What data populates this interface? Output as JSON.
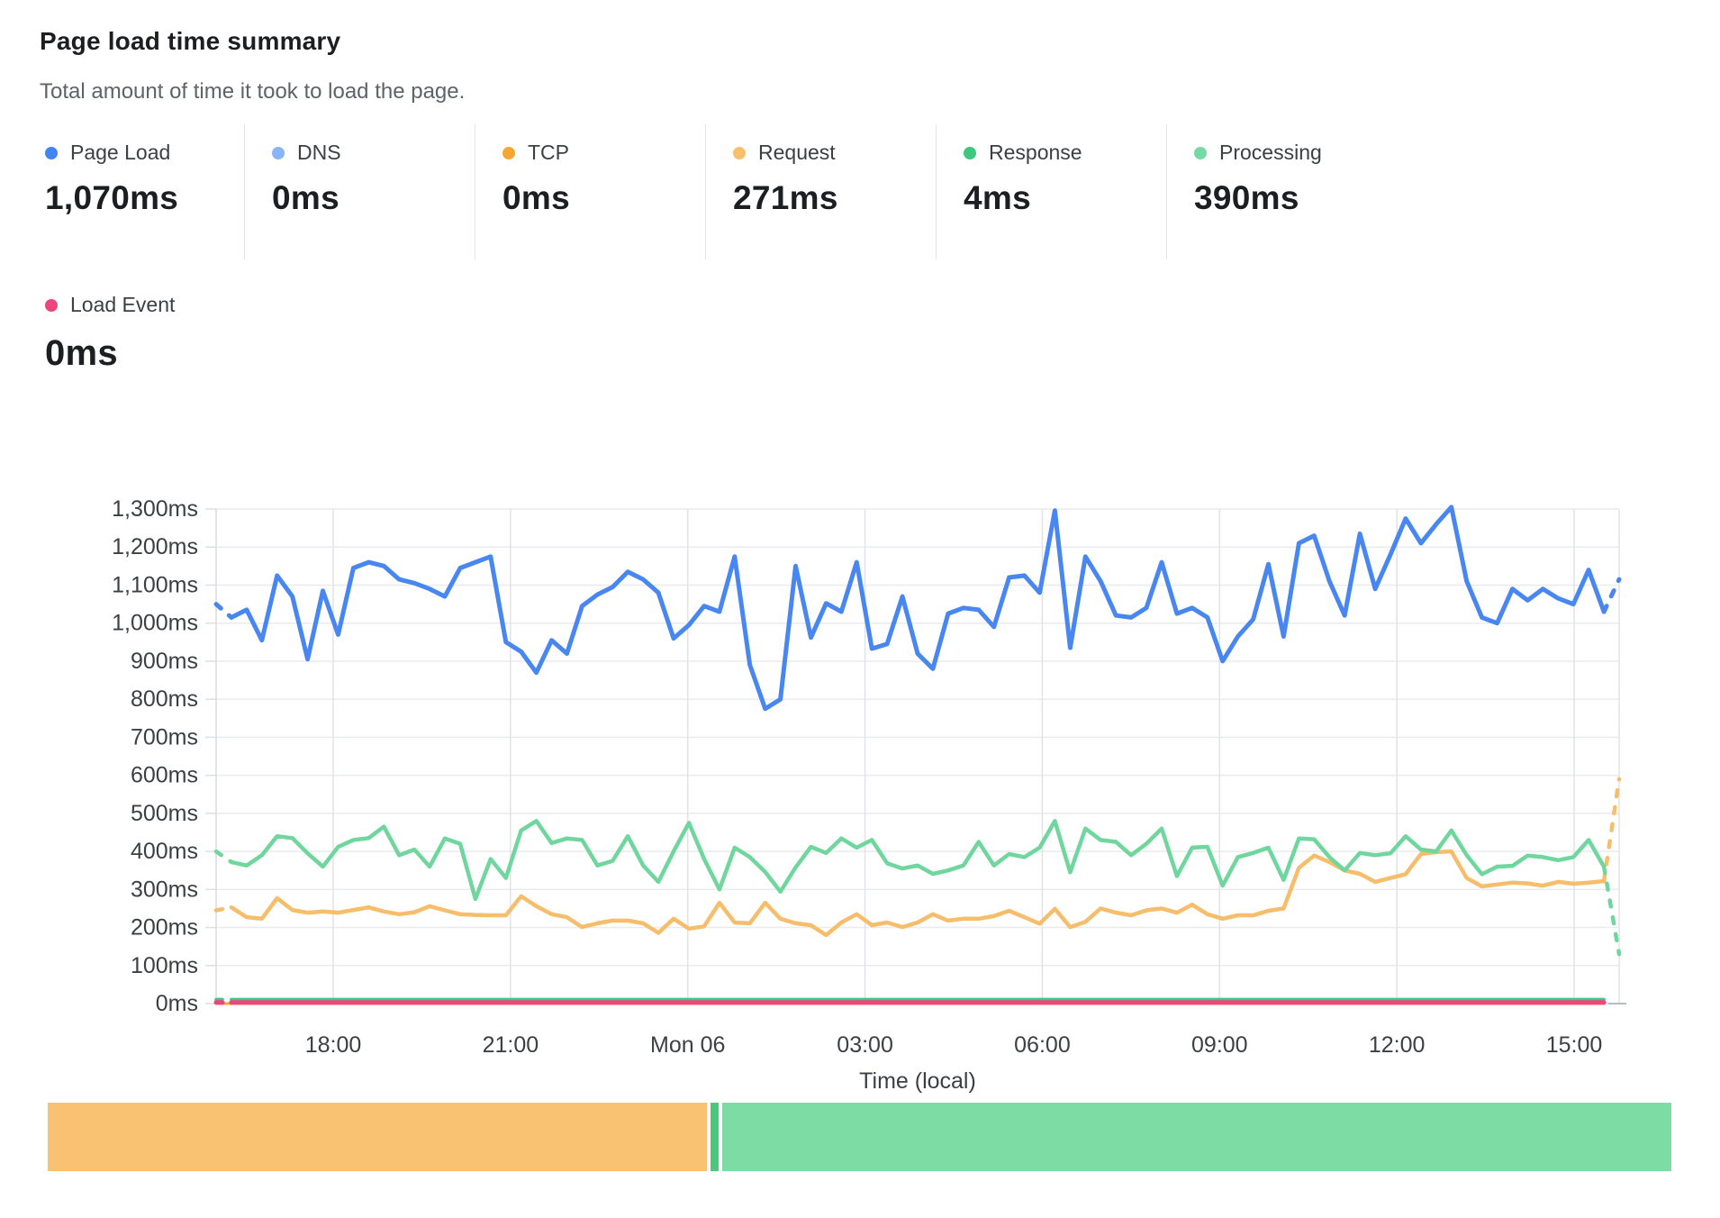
{
  "header": {
    "title": "Page load time summary",
    "subtitle": "Total amount of time it took to load the page."
  },
  "stats": [
    {
      "label": "Page Load",
      "value": "1,070ms",
      "color": "#4184f3"
    },
    {
      "label": "DNS",
      "value": "0ms",
      "color": "#8ab4f8"
    },
    {
      "label": "TCP",
      "value": "0ms",
      "color": "#f5a733"
    },
    {
      "label": "Request",
      "value": "271ms",
      "color": "#f8c06c"
    },
    {
      "label": "Response",
      "value": "4ms",
      "color": "#3fc77e"
    },
    {
      "label": "Processing",
      "value": "390ms",
      "color": "#74d9a2"
    }
  ],
  "load_event_stat": {
    "label": "Load Event",
    "value": "0ms",
    "color": "#ef457f"
  },
  "chart_data": {
    "type": "line",
    "title": "Page load time summary",
    "xlabel": "Time (local)",
    "ylabel": "",
    "ylim": [
      0,
      1300
    ],
    "grid": true,
    "x_ticks": [
      "18:00",
      "21:00",
      "Mon 06",
      "03:00",
      "06:00",
      "09:00",
      "12:00",
      "15:00"
    ],
    "y_ticks": [
      "0ms",
      "100ms",
      "200ms",
      "300ms",
      "400ms",
      "500ms",
      "600ms",
      "700ms",
      "800ms",
      "900ms",
      "1,000ms",
      "1,100ms",
      "1,200ms",
      "1,300ms"
    ],
    "note": "first and last segments of each visible series are dashed (partial data points)",
    "series": [
      {
        "name": "DNS",
        "color": "#8ab4f8",
        "width": 3,
        "flat": 0,
        "count": 92,
        "dash_start": false,
        "dash_end": false
      },
      {
        "name": "TCP",
        "color": "#f5a733",
        "width": 3,
        "flat": 0,
        "count": 92,
        "dash_start": false,
        "dash_end": false
      },
      {
        "name": "Response",
        "color": "#3fc77e",
        "width": 3.5,
        "flat": 11,
        "count": 92,
        "dash_start": true,
        "dash_end": false
      },
      {
        "name": "Load Event",
        "color": "#ef457f",
        "width": 5,
        "flat": 3,
        "count": 92,
        "dash_start": true,
        "dash_end": false
      },
      {
        "name": "Request",
        "color": "#f6bd6b",
        "width": 4.5,
        "dash_start": true,
        "dash_end": true,
        "values": [
          245,
          253,
          227,
          223,
          277,
          246,
          239,
          242,
          239,
          246,
          253,
          242,
          235,
          240,
          256,
          245,
          235,
          233,
          232,
          232,
          282,
          256,
          235,
          227,
          201,
          211,
          218,
          218,
          211,
          186,
          223,
          197,
          203,
          265,
          213,
          211,
          265,
          223,
          211,
          206,
          180,
          213,
          235,
          206,
          213,
          201,
          213,
          235,
          218,
          223,
          223,
          230,
          244,
          227,
          210,
          249,
          201,
          215,
          250,
          239,
          232,
          245,
          250,
          239,
          260,
          235,
          223,
          232,
          232,
          244,
          250,
          357,
          389,
          372,
          350,
          341,
          320,
          330,
          340,
          393,
          398,
          400,
          330,
          308,
          313,
          318,
          316,
          310,
          320,
          315,
          318,
          322,
          590
        ]
      },
      {
        "name": "Processing",
        "color": "#6fd69e",
        "width": 4.5,
        "dash_start": true,
        "dash_end": true,
        "values": [
          400,
          372,
          363,
          390,
          440,
          435,
          395,
          360,
          412,
          430,
          435,
          465,
          390,
          405,
          360,
          434,
          420,
          275,
          380,
          330,
          455,
          480,
          422,
          434,
          430,
          363,
          375,
          440,
          363,
          320,
          400,
          475,
          380,
          300,
          410,
          385,
          346,
          294,
          358,
          412,
          396,
          434,
          410,
          430,
          369,
          355,
          363,
          341,
          350,
          363,
          425,
          363,
          393,
          385,
          410,
          480,
          345,
          460,
          430,
          425,
          390,
          420,
          460,
          335,
          410,
          412,
          310,
          385,
          396,
          410,
          325,
          434,
          432,
          385,
          350,
          396,
          390,
          395,
          440,
          405,
          400,
          455,
          390,
          340,
          360,
          362,
          389,
          385,
          377,
          385,
          430,
          360,
          130
        ]
      },
      {
        "name": "Page Load",
        "color": "#4886f2",
        "width": 5,
        "dash_start": true,
        "dash_end": true,
        "values": [
          1050,
          1015,
          1035,
          955,
          1125,
          1070,
          905,
          1085,
          970,
          1145,
          1160,
          1150,
          1115,
          1105,
          1090,
          1070,
          1145,
          1160,
          1175,
          950,
          925,
          870,
          955,
          920,
          1045,
          1075,
          1095,
          1135,
          1115,
          1080,
          960,
          995,
          1045,
          1030,
          1175,
          890,
          775,
          800,
          1150,
          962,
          1052,
          1030,
          1160,
          933,
          945,
          1070,
          920,
          880,
          1025,
          1040,
          1035,
          990,
          1120,
          1125,
          1080,
          1296,
          935,
          1175,
          1110,
          1020,
          1015,
          1040,
          1160,
          1025,
          1040,
          1015,
          900,
          965,
          1010,
          1155,
          965,
          1210,
          1230,
          1110,
          1020,
          1235,
          1090,
          1180,
          1275,
          1210,
          1260,
          1305,
          1110,
          1015,
          1000,
          1090,
          1060,
          1090,
          1065,
          1050,
          1140,
          1030,
          1115
        ]
      }
    ]
  },
  "bottom_bar": {
    "segments": [
      {
        "name": "Request share",
        "color": "#f8c272",
        "percent": 40.8
      },
      {
        "name": "Response share",
        "color": "#4cc87e",
        "percent": 0.5
      },
      {
        "name": "Processing share",
        "color": "#7ddba4",
        "percent": 58.7
      }
    ]
  }
}
